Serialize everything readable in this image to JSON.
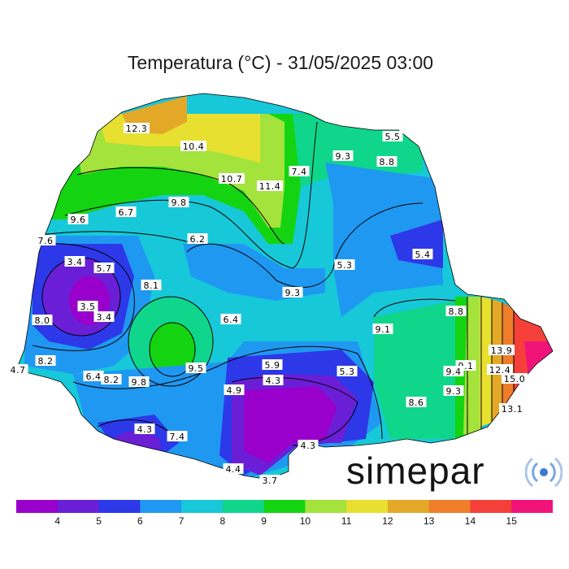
{
  "title": "Temperatura (°C) - 31/05/2025 03:00",
  "logo": {
    "text": "simepar",
    "icon": "signal-waves-icon"
  },
  "legend": {
    "colors": [
      "#9900cc",
      "#6a1fd6",
      "#2d38e8",
      "#1f98f2",
      "#17c8d8",
      "#0fd68a",
      "#14d412",
      "#a4e23c",
      "#e8e030",
      "#e4a828",
      "#f07d2a",
      "#f5403a",
      "#f0147a"
    ],
    "ticks": [
      "4",
      "5",
      "6",
      "7",
      "8",
      "9",
      "10",
      "11",
      "12",
      "13",
      "14",
      "15"
    ]
  },
  "labels": [
    {
      "text": "12.3"
    },
    {
      "text": "10.4"
    },
    {
      "text": "10.7"
    },
    {
      "text": "11.4"
    },
    {
      "text": "7.4"
    },
    {
      "text": "9.3"
    },
    {
      "text": "8.8"
    },
    {
      "text": "5.5"
    },
    {
      "text": "9.8"
    },
    {
      "text": "9.6"
    },
    {
      "text": "6.7"
    },
    {
      "text": "7.6"
    },
    {
      "text": "6.2"
    },
    {
      "text": "5.3"
    },
    {
      "text": "5.4"
    },
    {
      "text": "3.4"
    },
    {
      "text": "5.7"
    },
    {
      "text": "8.1"
    },
    {
      "text": "9.3"
    },
    {
      "text": "3.5"
    },
    {
      "text": "3.4"
    },
    {
      "text": "8.0"
    },
    {
      "text": "6.4"
    },
    {
      "text": "8.8"
    },
    {
      "text": "9.1"
    },
    {
      "text": "8.2"
    },
    {
      "text": "4.7"
    },
    {
      "text": "6.4"
    },
    {
      "text": "8.2"
    },
    {
      "text": "9.8"
    },
    {
      "text": "9.5"
    },
    {
      "text": "5.9"
    },
    {
      "text": "4.3"
    },
    {
      "text": "5.3"
    },
    {
      "text": "4.9"
    },
    {
      "text": "9.1"
    },
    {
      "text": "9.4"
    },
    {
      "text": "13.9"
    },
    {
      "text": "12.4"
    },
    {
      "text": "15.0"
    },
    {
      "text": "9.3"
    },
    {
      "text": "8.6"
    },
    {
      "text": "13.1"
    },
    {
      "text": "4.3"
    },
    {
      "text": "7.4"
    },
    {
      "text": "4.3"
    },
    {
      "text": "4.4"
    },
    {
      "text": "3.7"
    }
  ]
}
